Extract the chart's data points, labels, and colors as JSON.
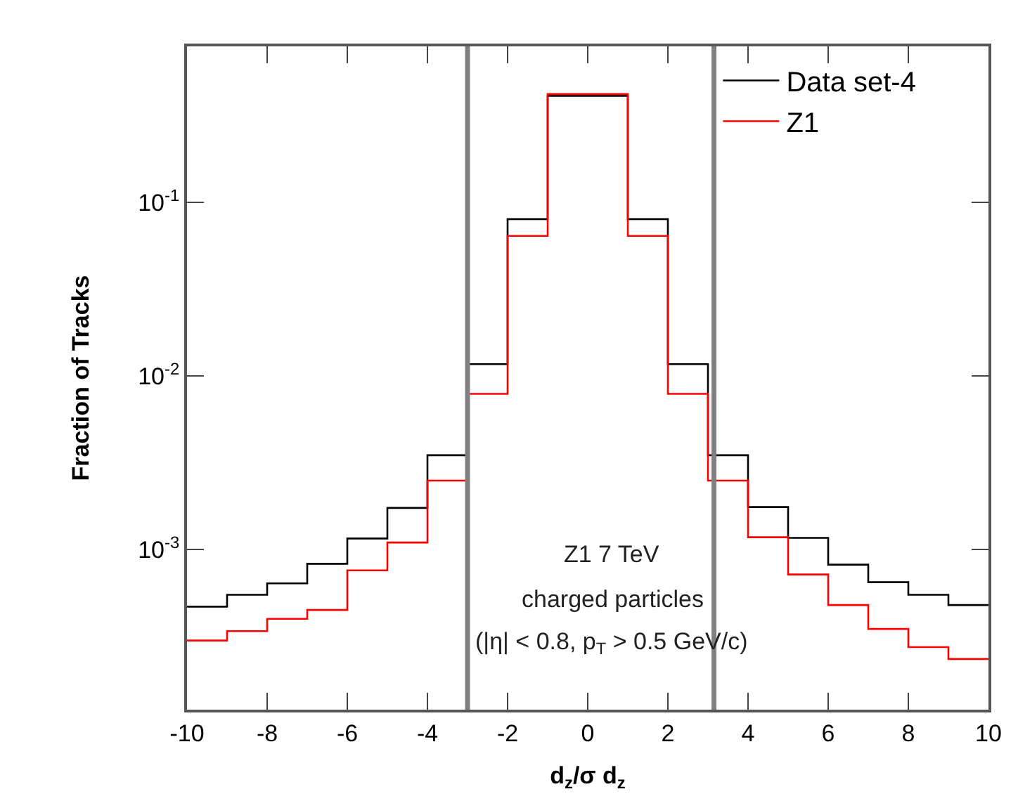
{
  "chart_data": {
    "type": "histogram",
    "xlabel": "d$_{z}$/σ d$_{z}$",
    "ylabel": "Fraction of Tracks",
    "bins": [
      -10,
      -9,
      -8,
      -7,
      -6,
      -5,
      -4,
      -3,
      -2,
      -1,
      1,
      2,
      3,
      4,
      5,
      6,
      7,
      8,
      9,
      10
    ],
    "series": [
      {
        "name": "Data set-4",
        "color": "#000000",
        "values": [
          0.00047,
          0.00055,
          0.00064,
          0.00083,
          0.00116,
          0.00174,
          0.0035,
          0.0117,
          0.08,
          0.41,
          0.08,
          0.0117,
          0.0035,
          0.00176,
          0.00117,
          0.00082,
          0.00065,
          0.00055,
          0.00048
        ]
      },
      {
        "name": "Z1",
        "color": "#ff0000",
        "values": [
          0.0003,
          0.00034,
          0.0004,
          0.00045,
          0.00076,
          0.0011,
          0.0025,
          0.0079,
          0.064,
          0.42,
          0.064,
          0.0079,
          0.0025,
          0.00118,
          0.00072,
          0.00048,
          0.00035,
          0.000275,
          0.000235
        ]
      }
    ],
    "log": "y",
    "xlim": [
      -10,
      10
    ],
    "xticks": [
      -10,
      -8,
      -6,
      -4,
      -2,
      0,
      2,
      4,
      6,
      8,
      10
    ],
    "ylim": [
      0.00012,
      0.79
    ],
    "yticks": [
      {
        "value": 0.001,
        "label": "10$^{-3}$"
      },
      {
        "value": 0.01,
        "label": "10$^{-2}$"
      },
      {
        "value": 0.1,
        "label": "10$^{-1}$"
      }
    ],
    "ref_lines": [
      {
        "axis": "x",
        "value": -3,
        "color": "#808080"
      },
      {
        "axis": "x",
        "value": 3.15,
        "color": "#808080"
      }
    ],
    "annotations": [
      "Z1 7 TeV",
      "charged particles",
      "(|η| < 0.8, p$_{T}$ > 0.5 GeV/c)"
    ],
    "legend": "top right"
  }
}
